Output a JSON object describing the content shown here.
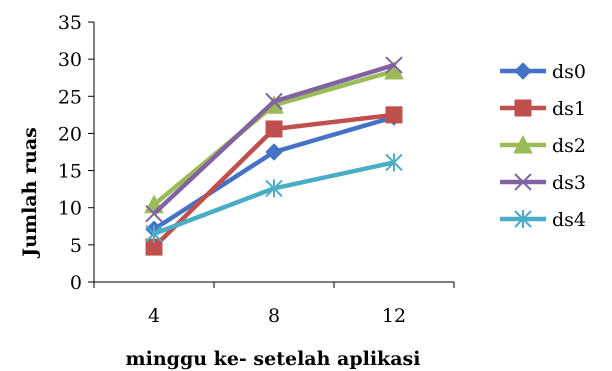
{
  "chart_data": {
    "type": "line",
    "title": "",
    "xlabel": "minggu ke- setelah aplikasi",
    "ylabel": "Jumlah ruas",
    "categories": [
      "4",
      "8",
      "12"
    ],
    "ylim": [
      0,
      35
    ],
    "yticks": [
      "0",
      "5",
      "10",
      "15",
      "20",
      "25",
      "30",
      "35"
    ],
    "grid": false,
    "legend": "right",
    "series": [
      {
        "name": "ds0",
        "values": [
          7.1,
          17.5,
          22.2
        ],
        "color": "#4472C4",
        "marker": "diamond"
      },
      {
        "name": "ds1",
        "values": [
          4.7,
          20.6,
          22.5
        ],
        "color": "#C0504D",
        "marker": "square"
      },
      {
        "name": "ds2",
        "values": [
          10.4,
          23.8,
          28.4
        ],
        "color": "#9BBB59",
        "marker": "triangle"
      },
      {
        "name": "ds3",
        "values": [
          9.2,
          24.3,
          29.2
        ],
        "color": "#8064A2",
        "marker": "x"
      },
      {
        "name": "ds4",
        "values": [
          6.5,
          12.6,
          16.1
        ],
        "color": "#4BACC6",
        "marker": "star"
      }
    ]
  }
}
